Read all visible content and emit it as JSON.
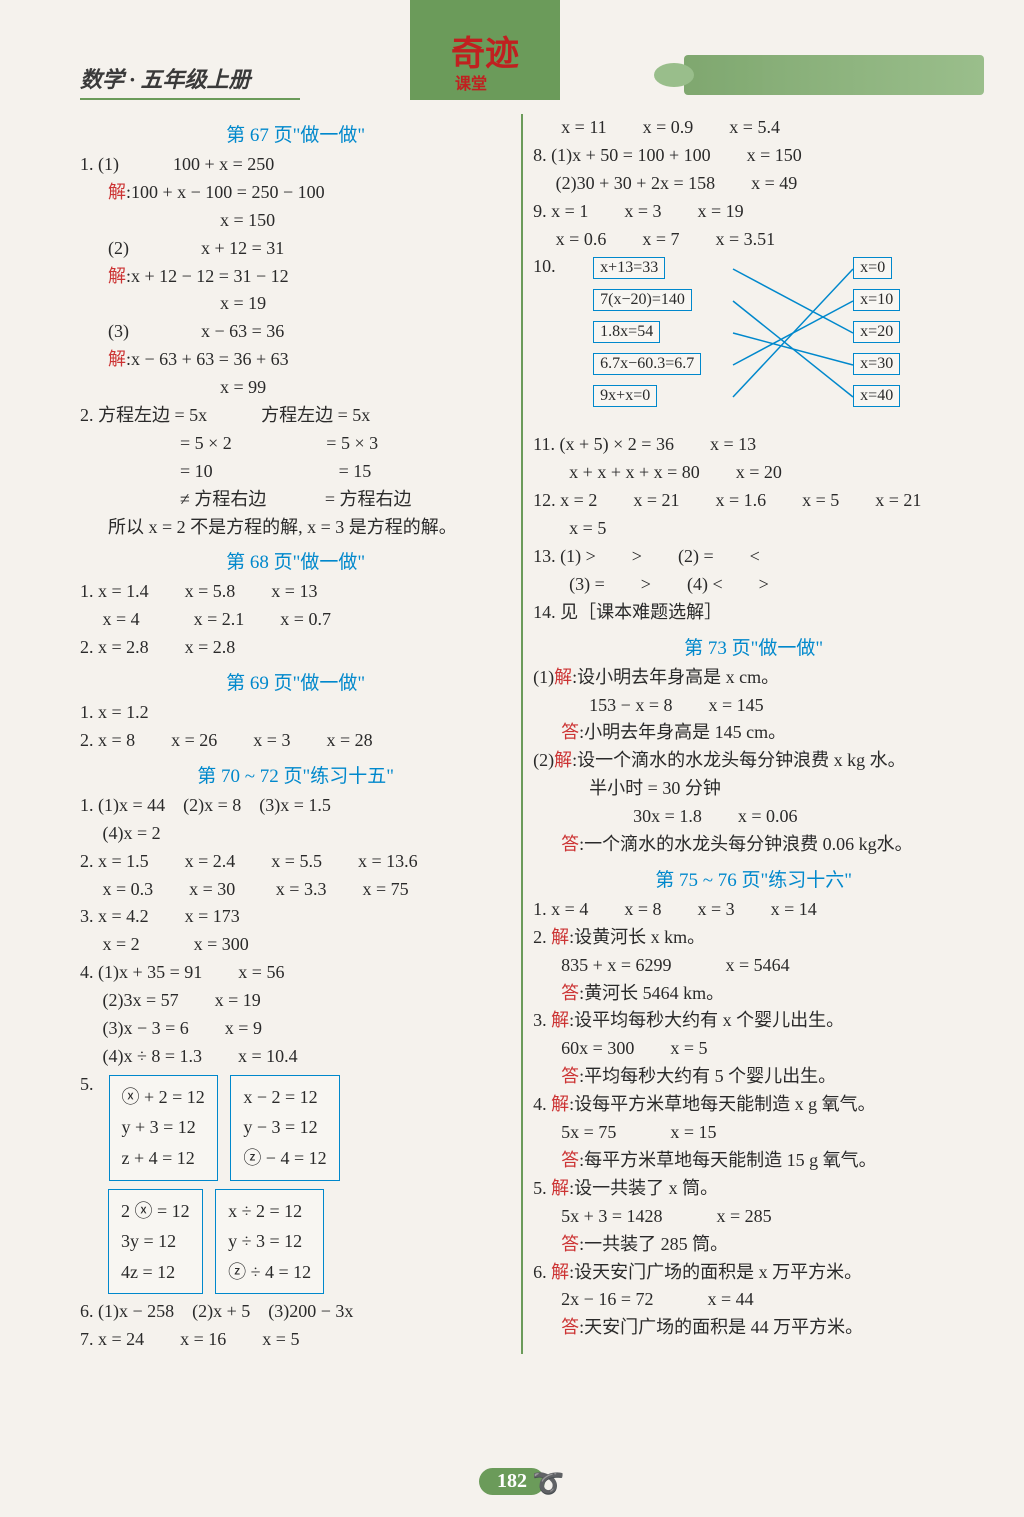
{
  "header": {
    "book_title": "数学 · 五年级上册",
    "logo_main": "奇迹",
    "logo_sub": "课堂"
  },
  "left": {
    "s67": {
      "hd": "第 67 页\"做一做\"",
      "q1": {
        "l1": "1. (1)　　　100 + x = 250",
        "l2a": "解",
        "l2b": ":100 + x − 100 = 250 − 100",
        "l3": "x = 150",
        "l4": "(2)　　　　x + 12 = 31",
        "l5a": "解",
        "l5b": ":x + 12 − 12 = 31 − 12",
        "l6": "x = 19",
        "l7": "(3)　　　　x − 63 = 36",
        "l8a": "解",
        "l8b": ":x − 63 + 63 = 36 + 63",
        "l9": "x = 99"
      },
      "q2": {
        "l1": "2. 方程左边 = 5x　　　方程左边 = 5x",
        "l2": "= 5 × 2　　　　　 = 5 × 3",
        "l3": "= 10　　　　　　　= 15",
        "l4": "≠ 方程右边　　　 = 方程右边",
        "l5": "所以 x = 2 不是方程的解, x = 3 是方程的解。"
      }
    },
    "s68": {
      "hd": "第 68 页\"做一做\"",
      "l1": "1. x = 1.4　　x = 5.8　　x = 13",
      "l2": "　 x = 4　　　x = 2.1　　x = 0.7",
      "l3": "2. x = 2.8　　x = 2.8"
    },
    "s69": {
      "hd": "第 69 页\"做一做\"",
      "l1": "1. x = 1.2",
      "l2": "2. x = 8　　x = 26　　x = 3　　x = 28"
    },
    "s70": {
      "hd": "第 70 ~ 72 页\"练习十五\"",
      "l1": "1. (1)x = 44　(2)x = 8　(3)x = 1.5",
      "l2": "　 (4)x = 2",
      "l3": "2. x = 1.5　　x = 2.4　　x = 5.5　　x = 13.6",
      "l4": "　 x = 0.3　　x = 30　　 x = 3.3　　x = 75",
      "l5": "3. x = 4.2　　x = 173",
      "l6": "　 x = 2　　　x = 300",
      "l7": "4. (1)x + 35 = 91　　x = 56",
      "l8": "　 (2)3x = 57　　x = 19",
      "l9": "　 (3)x − 3 = 6　　x = 9",
      "l10": "　 (4)x ÷ 8 = 1.3　　x = 10.4",
      "box5a": {
        "r1": "ⓧ + 2 = 12",
        "r2": "y + 3 = 12",
        "r3": "z + 4 = 12"
      },
      "box5b": {
        "r1": "x − 2 = 12",
        "r2": "y − 3 = 12",
        "r3": "ⓩ − 4 = 12"
      },
      "box5c": {
        "r1": "2 ⓧ = 12",
        "r2": "3y = 12",
        "r3": "4z = 12"
      },
      "box5d": {
        "r1": "x ÷ 2 = 12",
        "r2": "y ÷ 3 = 12",
        "r3": "ⓩ ÷ 4 = 12"
      },
      "q5label": "5.",
      "l11": "6. (1)x − 258　(2)x + 5　(3)200 − 3x",
      "l12": "7. x = 24　　x = 16　　x = 5"
    }
  },
  "right": {
    "cont": {
      "l1": "x = 11　　x = 0.9　　x = 5.4",
      "l2": "8. (1)x + 50 = 100 + 100　　x = 150",
      "l3": "　 (2)30 + 30 + 2x = 158　　x = 49",
      "l4": "9. x = 1　　x = 3　　x = 19",
      "l5": "　 x = 0.6　　x = 7　　x = 3.51"
    },
    "q10": {
      "label": "10.",
      "leftBoxes": [
        "x+13=33",
        "7(x−20)=140",
        "1.8x=54",
        "6.7x−60.3=6.7",
        "9x+x=0"
      ],
      "rightBoxes": [
        "x=0",
        "x=10",
        "x=20",
        "x=30",
        "x=40"
      ],
      "edges": [
        [
          0,
          2
        ],
        [
          1,
          4
        ],
        [
          2,
          3
        ],
        [
          3,
          1
        ],
        [
          4,
          0
        ]
      ]
    },
    "after10": {
      "l1": "11. (x + 5) × 2 = 36　　x = 13",
      "l2": "　　x + x + x + x = 80　　x = 20",
      "l3": "12. x = 2　　x = 21　　x = 1.6　　x = 5　　x = 21",
      "l4": "　　x = 5",
      "l5": "13. (1) >　　>　　(2) =　　<",
      "l6": "　　(3) =　　>　　(4) <　　>",
      "l7": "14. 见［课本难题选解］"
    },
    "s73": {
      "hd": "第 73 页\"做一做\"",
      "l1a": "(1)",
      "l1j": "解",
      "l1b": ":设小明去年身高是 x cm。",
      "l2": "153 − x = 8　　x = 145",
      "l3a": "答",
      "l3b": ":小明去年身高是 145 cm。",
      "l4a": "(2)",
      "l4j": "解",
      "l4b": ":设一个滴水的水龙头每分钟浪费 x kg 水。",
      "l5": "半小时 = 30 分钟",
      "l6": "30x = 1.8　　x = 0.06",
      "l7a": "答",
      "l7b": ":一个滴水的水龙头每分钟浪费 0.06 kg水。"
    },
    "s75": {
      "hd": "第 75 ~ 76 页\"练习十六\"",
      "l1": "1. x = 4　　x = 8　　x = 3　　x = 14",
      "q2": {
        "a": "2. ",
        "j": "解",
        "b": ":设黄河长 x km。",
        "c": "835 + x = 6299　　　x = 5464",
        "da": "答",
        "db": ":黄河长 5464 km。"
      },
      "q3": {
        "a": "3. ",
        "j": "解",
        "b": ":设平均每秒大约有 x 个婴儿出生。",
        "c": "60x = 300　　x = 5",
        "da": "答",
        "db": ":平均每秒大约有 5 个婴儿出生。"
      },
      "q4": {
        "a": "4. ",
        "j": "解",
        "b": ":设每平方米草地每天能制造 x g 氧气。",
        "c": "5x = 75　　　x = 15",
        "da": "答",
        "db": ":每平方米草地每天能制造 15 g 氧气。"
      },
      "q5": {
        "a": "5. ",
        "j": "解",
        "b": ":设一共装了 x 筒。",
        "c": "5x + 3 = 1428　　　x = 285",
        "da": "答",
        "db": ":一共装了 285 筒。"
      },
      "q6": {
        "a": "6. ",
        "j": "解",
        "b": ":设天安门广场的面积是 x 万平方米。",
        "c": "2x − 16 = 72　　　x = 44",
        "da": "答",
        "db": ":天安门广场的面积是 44 万平方米。"
      }
    }
  },
  "page_num": "182",
  "colors": {
    "blue": "#0088cc",
    "red": "#cc3333",
    "green": "#6b9b5a",
    "text": "#2a2a2a",
    "bg": "#f5f2ed"
  }
}
